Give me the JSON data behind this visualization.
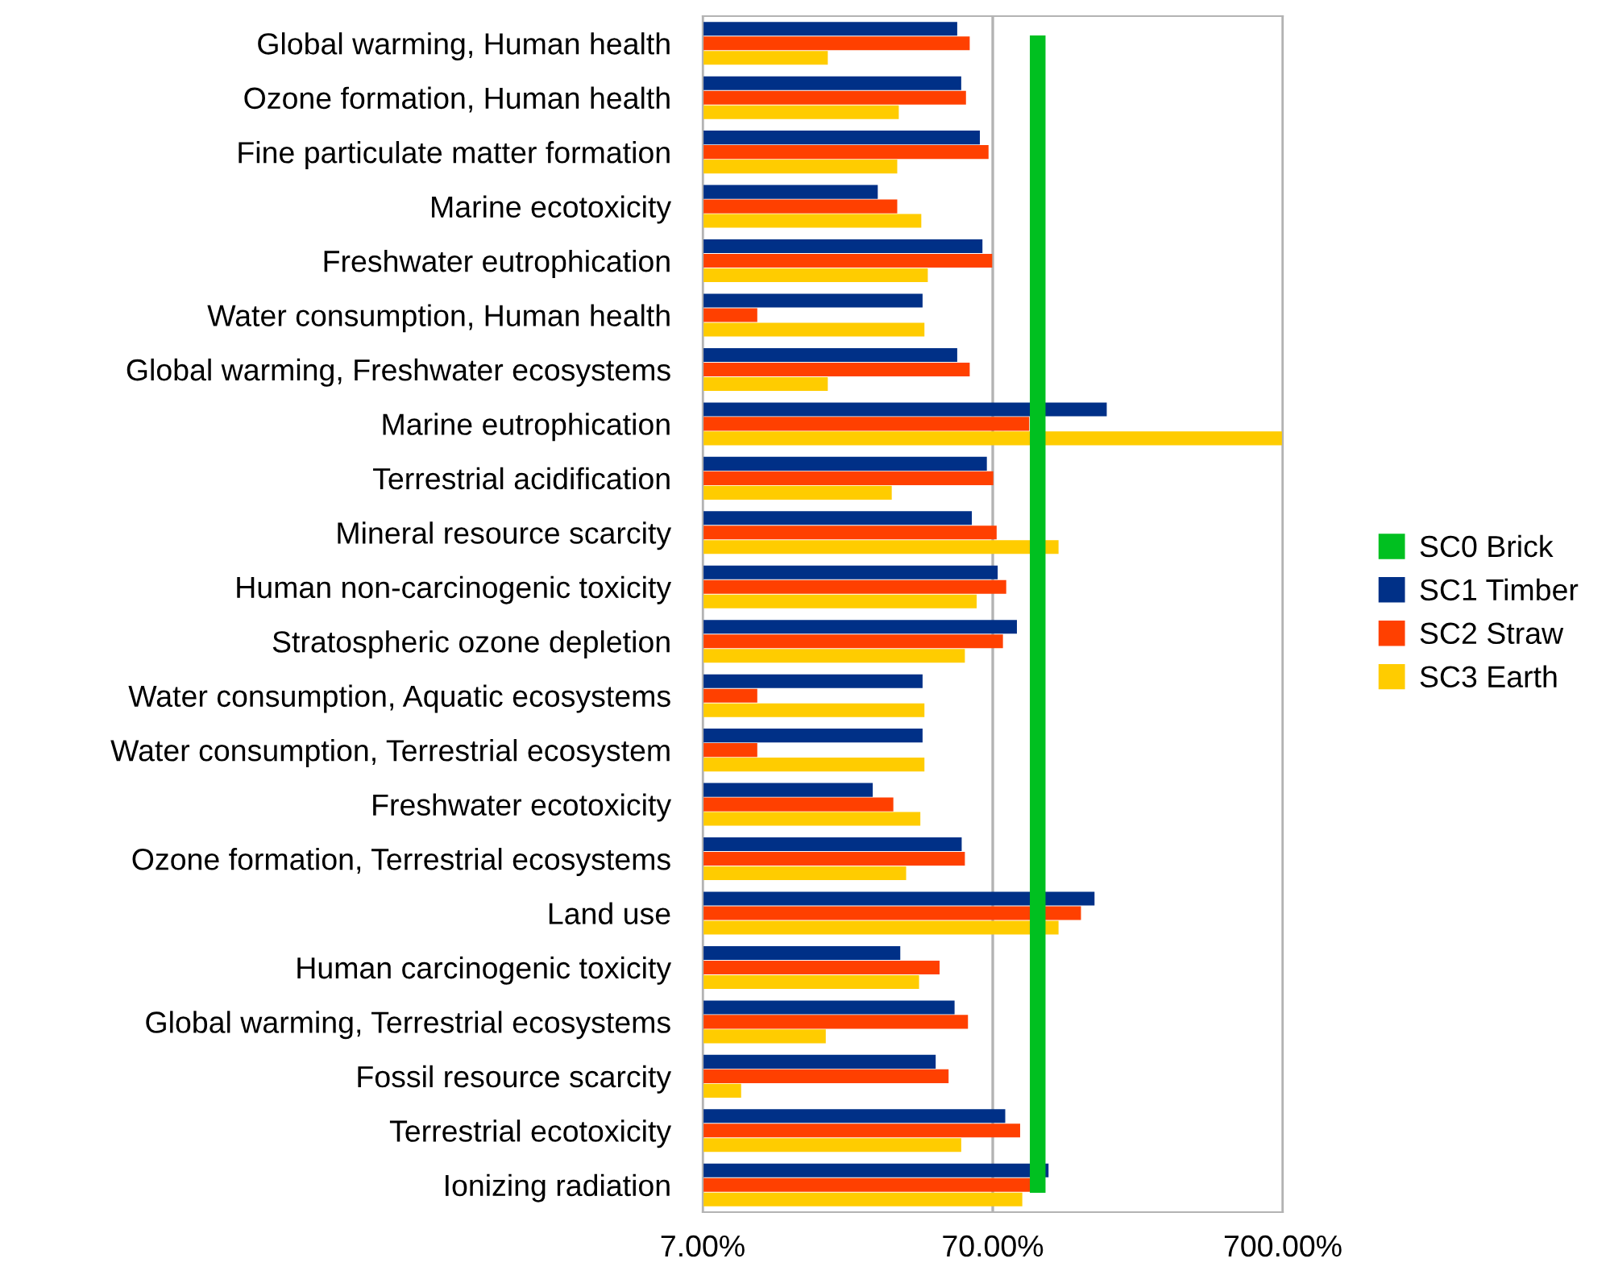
{
  "chart_data": {
    "type": "bar",
    "orientation": "horizontal",
    "log": "x",
    "categories": [
      "Global warming, Human health",
      "Ozone formation, Human health",
      "Fine particulate matter formation",
      "Marine ecotoxicity",
      "Freshwater eutrophication",
      "Water consumption, Human health",
      "Global warming, Freshwater ecosystems",
      "Marine eutrophication",
      "Terrestrial acidification",
      "Mineral resource scarcity",
      "Human non-carcinogenic toxicity",
      "Stratospheric ozone depletion",
      "Water consumption, Aquatic ecosystems",
      "Water consumption, Terrestrial ecosystem",
      "Freshwater ecotoxicity",
      "Ozone formation, Terrestrial ecosystems",
      "Land use",
      "Human carcinogenic toxicity",
      "Global warming, Terrestrial ecosystems",
      "Fossil resource scarcity",
      "Terrestrial ecotoxicity",
      "Ionizing radiation"
    ],
    "series": [
      {
        "name": "SC0 Brick",
        "type": "line",
        "color": "#00c020",
        "values": [
          100,
          100,
          100,
          100,
          100,
          100,
          100,
          100,
          100,
          100,
          100,
          100,
          100,
          100,
          100,
          100,
          100,
          100,
          100,
          100,
          100,
          100
        ]
      },
      {
        "name": "SC1 Timber",
        "color": "#003087",
        "values": [
          52.8,
          54.5,
          63.2,
          28.1,
          64.5,
          40.1,
          52.8,
          173,
          66.8,
          59.3,
          72.8,
          84.8,
          40.1,
          40.1,
          27.0,
          54.7,
          157,
          33.6,
          51.7,
          44.5,
          77.3,
          109
        ]
      },
      {
        "name": "SC2 Straw",
        "color": "#ff4000",
        "values": [
          58.3,
          56.6,
          67.7,
          32.8,
          69.7,
          10.8,
          58.3,
          93.5,
          70.3,
          72.2,
          77.9,
          75.9,
          10.8,
          10.8,
          31.8,
          56.1,
          141,
          45.9,
          57.5,
          49.3,
          87.0,
          96.8
        ]
      },
      {
        "name": "SC3 Earth",
        "color": "#ffcc00",
        "values": [
          18.9,
          33.2,
          32.8,
          39.7,
          41.8,
          40.7,
          18.9,
          700,
          31.4,
          118,
          61.6,
          56.1,
          40.7,
          40.7,
          39.4,
          35.2,
          118,
          39.0,
          18.6,
          9.5,
          54.5,
          88.5
        ]
      }
    ],
    "xlim": [
      7,
      700
    ],
    "xticks": [
      {
        "value": 7,
        "label": "7.00%"
      },
      {
        "value": 70,
        "label": "70.00%"
      },
      {
        "value": 700,
        "label": "700.00%"
      }
    ],
    "grid": "x",
    "legend": "right"
  }
}
